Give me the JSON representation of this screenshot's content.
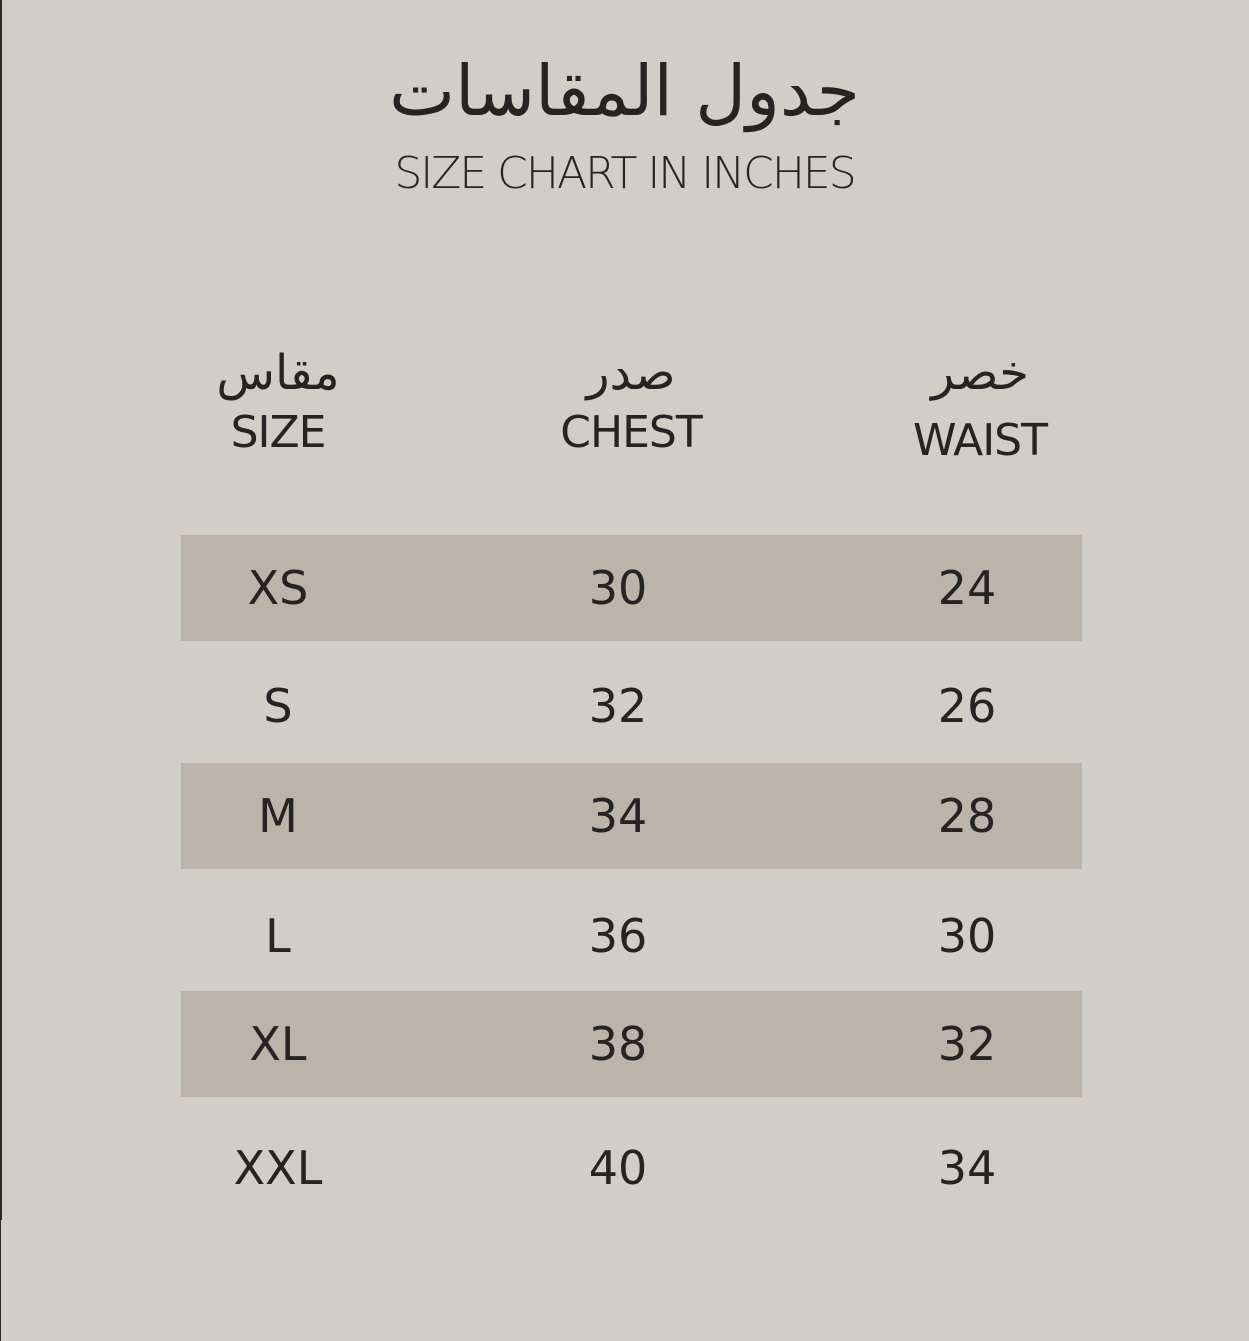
{
  "title_ar": "جدول المقاسات",
  "title_en": "SIZE CHART IN INCHES",
  "headers": [
    {
      "ar": "مقاس",
      "en": "SIZE"
    },
    {
      "ar": "صدر",
      "en": "CHEST"
    },
    {
      "ar": "خصر",
      "en": "WAIST"
    }
  ],
  "rows": [
    [
      "XS",
      "30",
      "24"
    ],
    [
      "S",
      "32",
      "26"
    ],
    [
      "M",
      "34",
      "28"
    ],
    [
      "L",
      "36",
      "30"
    ],
    [
      "XL",
      "38",
      "32"
    ],
    [
      "XXL",
      "40",
      "34"
    ]
  ],
  "colors": {
    "background": "#d1cec7",
    "band": "#bcb3aa",
    "text": "#262423"
  }
}
